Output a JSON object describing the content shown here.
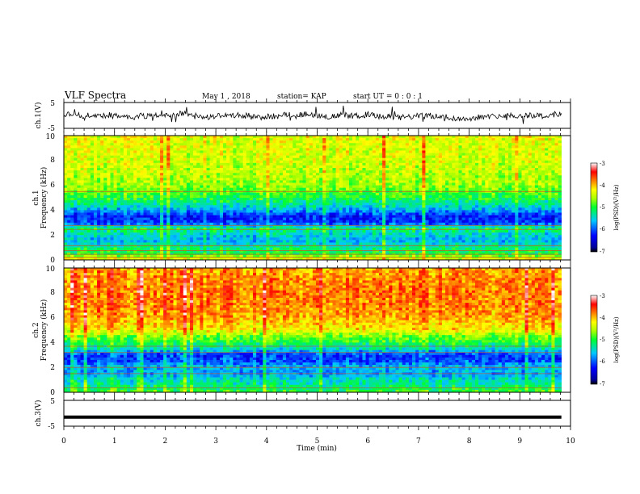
{
  "header": {
    "title": "VLF Spectra",
    "date": "May 1 , 2018",
    "station": "station= KAP",
    "start": "start UT =  0 : 0 : 1"
  },
  "chart_data": [
    {
      "type": "line",
      "name": "ch1-waveform",
      "ylabel": "ch.1(V)",
      "xlim": [
        0,
        10
      ],
      "ylim": [
        -5,
        5
      ],
      "yticks": [
        "5",
        "-5"
      ]
    },
    {
      "type": "heatmap",
      "name": "ch1-spectrogram",
      "ylabel_top": "ch.1",
      "ylabel": "Frequency (kHz)",
      "xlim": [
        0,
        10
      ],
      "ylim": [
        0,
        10
      ],
      "yticks": [
        "0",
        "2",
        "4",
        "6",
        "8",
        "10"
      ],
      "colorbar": {
        "label": "log(PSD)(V²/Hz)",
        "ticks": [
          "-3",
          "-4",
          "-5",
          "-6",
          "-7"
        ],
        "range": [
          -7,
          -3
        ]
      },
      "profile": {
        "freq_khz": [
          0,
          0.5,
          1,
          1.5,
          2,
          2.5,
          3,
          3.5,
          4,
          4.5,
          5,
          5.5,
          6,
          7,
          8,
          9,
          10
        ],
        "log_psd": [
          -4.2,
          -5.0,
          -5.2,
          -5.6,
          -5.5,
          -5.1,
          -6.1,
          -6.2,
          -5.7,
          -5.3,
          -5.0,
          -4.8,
          -4.6,
          -4.5,
          -4.4,
          -4.35,
          -4.3
        ]
      },
      "lines_khz": [
        0.2,
        0.45,
        0.75,
        1.15,
        2.45,
        2.75,
        5.5
      ]
    },
    {
      "type": "heatmap",
      "name": "ch2-spectrogram",
      "ylabel_top": "ch.2",
      "ylabel": "Frequency (kHz)",
      "xlim": [
        0,
        10
      ],
      "ylim": [
        0,
        10
      ],
      "yticks": [
        "0",
        "2",
        "4",
        "6",
        "8",
        "10"
      ],
      "colorbar": {
        "label": "log(PSD)(V²/Hz)",
        "ticks": [
          "-3",
          "-4",
          "-5",
          "-6",
          "-7"
        ],
        "range": [
          -7,
          -3
        ]
      },
      "profile": {
        "freq_khz": [
          0,
          0.5,
          1,
          1.5,
          2,
          2.5,
          3,
          3.5,
          4,
          4.5,
          5,
          6,
          7,
          8,
          9,
          10
        ],
        "log_psd": [
          -4.9,
          -5.2,
          -5.4,
          -5.7,
          -5.6,
          -6.0,
          -6.1,
          -5.4,
          -5.0,
          -4.7,
          -4.2,
          -3.9,
          -3.8,
          -3.75,
          -3.8,
          -3.9
        ]
      },
      "lines_khz": [
        0.35,
        1.5,
        2.0,
        3.2,
        3.7
      ]
    },
    {
      "type": "line",
      "name": "ch3-waveform",
      "ylabel": "ch.3(V)",
      "xlim": [
        0,
        10
      ],
      "ylim": [
        -5,
        5
      ],
      "yticks": [
        "5",
        "-5"
      ],
      "constant_value": -1.5
    }
  ],
  "xaxis": {
    "label": "Time (min)",
    "ticks": [
      "0",
      "1",
      "2",
      "3",
      "4",
      "5",
      "6",
      "7",
      "8",
      "9",
      "10"
    ],
    "data_end": 9.82
  }
}
